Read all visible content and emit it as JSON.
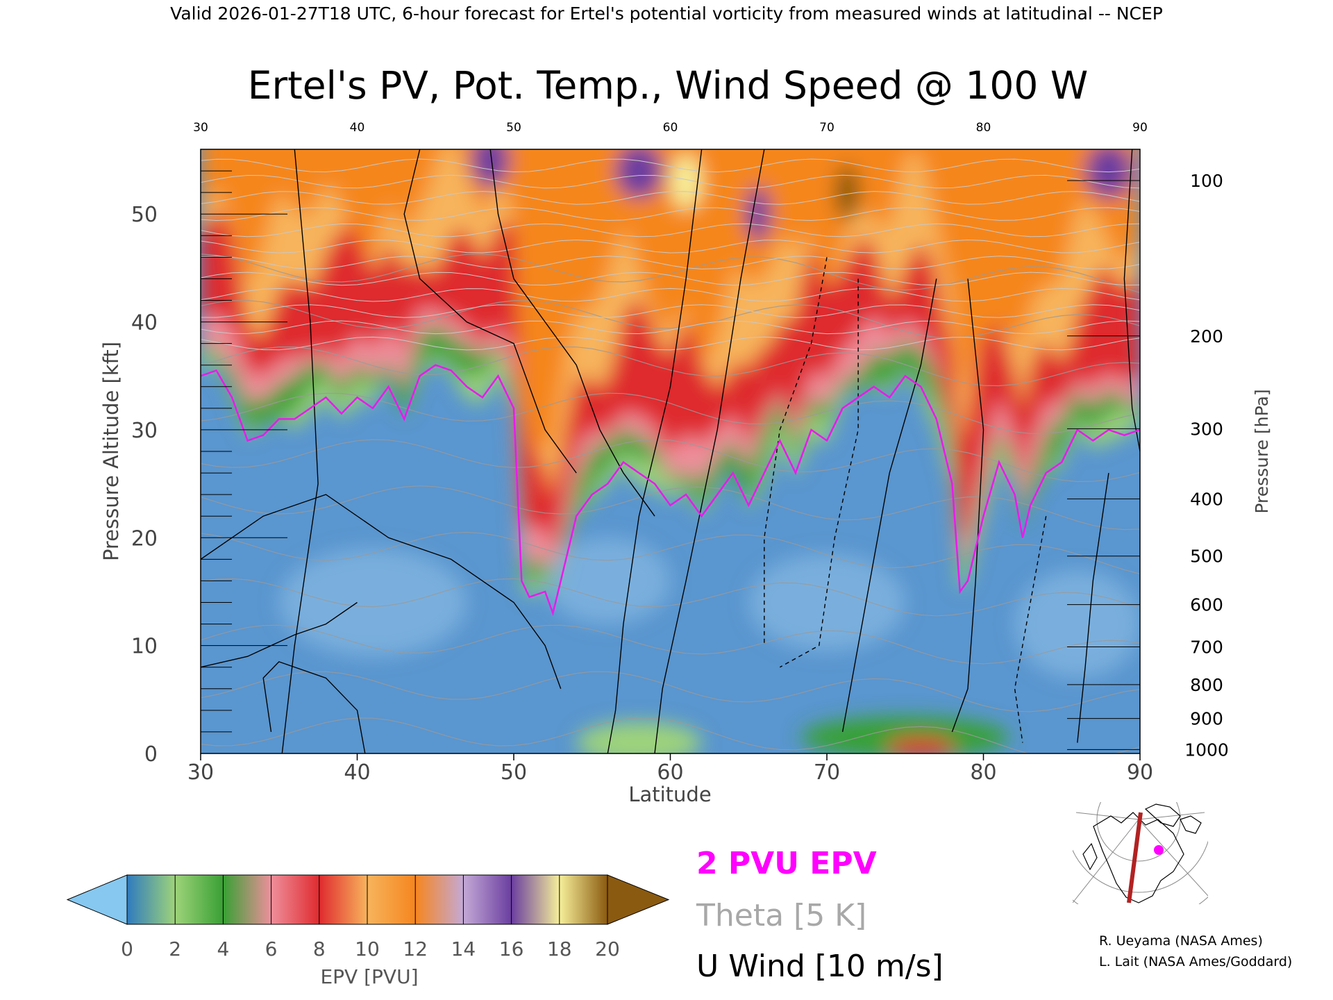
{
  "header": {
    "valid_line": "Valid 2026-01-27T18 UTC, 6-hour forecast for Ertel's potential vorticity from measured winds at latitudinal -- NCEP"
  },
  "chart_data": {
    "type": "heatmap",
    "title": "Ertel's PV, Pot. Temp., Wind Speed @ 100 W",
    "xlabel": "Latitude",
    "ylabel_left": "Pressure Altitude [kft]",
    "ylabel_right": "Pressure [hPa]",
    "xlim": [
      30,
      90
    ],
    "ylim_kft": [
      0,
      56
    ],
    "x_ticks": [
      30,
      40,
      50,
      60,
      70,
      80,
      90
    ],
    "x_tick_labels": [
      "30",
      "40",
      "50",
      "60",
      "70",
      "80",
      "90"
    ],
    "y_ticks_kft": [
      0,
      10,
      20,
      30,
      40,
      50
    ],
    "y_tick_labels_kft": [
      "0",
      "10",
      "20",
      "30",
      "40",
      "50"
    ],
    "pressure_ticks": [
      {
        "hPa": 1000,
        "kft": 0.36,
        "label": "1000"
      },
      {
        "hPa": 900,
        "kft": 3.24,
        "label": "900"
      },
      {
        "hPa": 800,
        "kft": 6.38,
        "label": "800"
      },
      {
        "hPa": 700,
        "kft": 9.88,
        "label": "700"
      },
      {
        "hPa": 600,
        "kft": 13.8,
        "label": "600"
      },
      {
        "hPa": 500,
        "kft": 18.3,
        "label": "500"
      },
      {
        "hPa": 400,
        "kft": 23.6,
        "label": "400"
      },
      {
        "hPa": 300,
        "kft": 30.1,
        "label": "300"
      },
      {
        "hPa": 200,
        "kft": 38.7,
        "label": "200"
      },
      {
        "hPa": 100,
        "kft": 53.1,
        "label": "100"
      }
    ],
    "colorbar": {
      "label": "EPV [PVU]",
      "ticks": [
        0,
        2,
        4,
        6,
        8,
        10,
        12,
        14,
        16,
        18,
        20
      ],
      "tick_labels": [
        "0",
        "2",
        "4",
        "6",
        "8",
        "10",
        "12",
        "14",
        "16",
        "18",
        "20"
      ],
      "colors": [
        "#2f7bbf",
        "#9ed37a",
        "#39a034",
        "#ee8f9b",
        "#df2b2f",
        "#f7b45c",
        "#f5861f",
        "#c4a9d6",
        "#6a3ea0",
        "#f6ef9a",
        "#8a5a10"
      ],
      "under_color": "#86c8f0",
      "over_color": "#8a5a10"
    },
    "tropopause_2pvu": [
      [
        30,
        35
      ],
      [
        31,
        35.5
      ],
      [
        32,
        33
      ],
      [
        33,
        29
      ],
      [
        34,
        29.5
      ],
      [
        35,
        31
      ],
      [
        36,
        31
      ],
      [
        37,
        32
      ],
      [
        38,
        33
      ],
      [
        39,
        31.5
      ],
      [
        40,
        33
      ],
      [
        41,
        32
      ],
      [
        42,
        34
      ],
      [
        43,
        31
      ],
      [
        44,
        35
      ],
      [
        45,
        36
      ],
      [
        46,
        35.5
      ],
      [
        47,
        34
      ],
      [
        48,
        33
      ],
      [
        49,
        35
      ],
      [
        50,
        32
      ],
      [
        50.5,
        16
      ],
      [
        51,
        14.5
      ],
      [
        52,
        15
      ],
      [
        52.5,
        13
      ],
      [
        53,
        16
      ],
      [
        54,
        22
      ],
      [
        55,
        24
      ],
      [
        56,
        25
      ],
      [
        57,
        27
      ],
      [
        58,
        26
      ],
      [
        59,
        25
      ],
      [
        60,
        23
      ],
      [
        61,
        24
      ],
      [
        62,
        22
      ],
      [
        63,
        24
      ],
      [
        64,
        26
      ],
      [
        65,
        23
      ],
      [
        66,
        26
      ],
      [
        67,
        29
      ],
      [
        68,
        26
      ],
      [
        69,
        30
      ],
      [
        70,
        29
      ],
      [
        71,
        32
      ],
      [
        72,
        33
      ],
      [
        73,
        34
      ],
      [
        74,
        33
      ],
      [
        75,
        35
      ],
      [
        76,
        34
      ],
      [
        77,
        31
      ],
      [
        78,
        25
      ],
      [
        78.5,
        15
      ],
      [
        79,
        16
      ],
      [
        80,
        22
      ],
      [
        81,
        27
      ],
      [
        82,
        24
      ],
      [
        82.5,
        20
      ],
      [
        83,
        23
      ],
      [
        84,
        26
      ],
      [
        85,
        27
      ],
      [
        86,
        30
      ],
      [
        87,
        29
      ],
      [
        88,
        30
      ],
      [
        89,
        29.5
      ],
      [
        90,
        30
      ]
    ],
    "theta_levels_K": [
      270,
      280,
      290,
      300,
      310,
      320,
      330,
      340,
      350,
      360,
      370
    ],
    "legend": {
      "pv": "2 PVU EPV",
      "theta": "Theta [5 K]",
      "wind": "U Wind [10 m/s]"
    }
  },
  "credits": {
    "line1": "R. Ueyama (NASA Ames)",
    "line2": "L. Lait (NASA Ames/Goddard)"
  },
  "colors": {
    "pv_contour": "#e81ce8",
    "theta_contour": "#9a9a9a",
    "wind_contour": "#000000",
    "section_line": "#b22222",
    "location_marker": "#ff00ff"
  }
}
